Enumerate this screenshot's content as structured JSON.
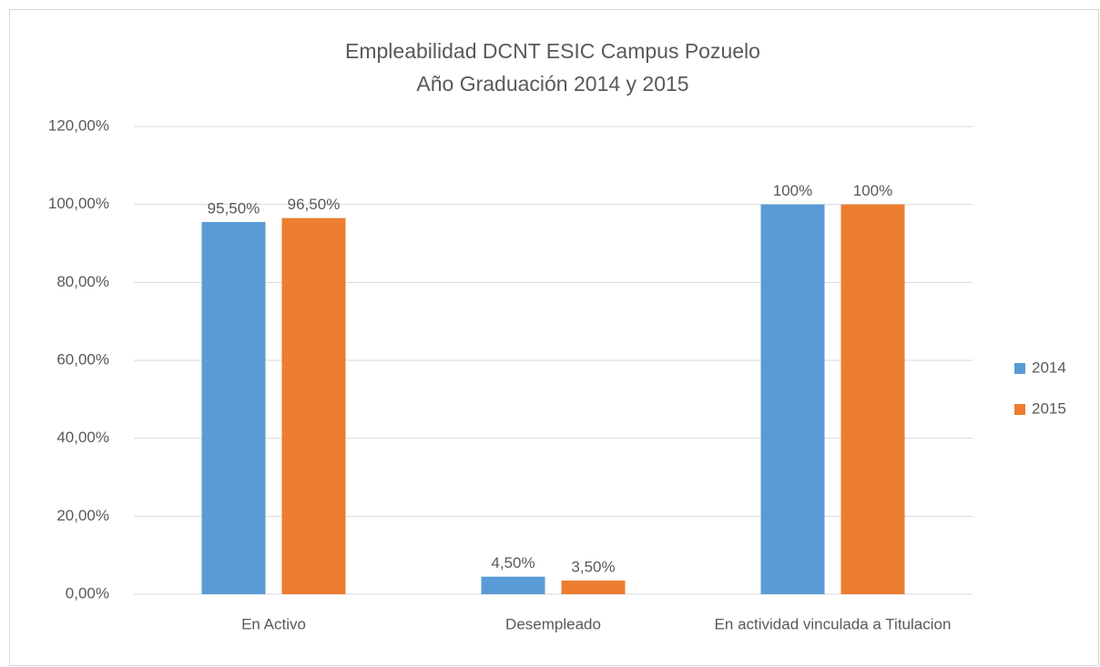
{
  "chart_data": {
    "type": "bar",
    "title": "Empleabilidad DCNT ESIC Campus Pozuelo",
    "subtitle": "Año Graduación 2014 y 2015",
    "categories": [
      "En Activo",
      "Desempleado",
      "En actividad vinculada a Titulacion"
    ],
    "series": [
      {
        "name": "2014",
        "color": "#5b9bd5",
        "values": [
          95.5,
          4.5,
          100
        ],
        "value_labels": [
          "95,50%",
          "4,50%",
          "100%"
        ]
      },
      {
        "name": "2015",
        "color": "#ed7d31",
        "values": [
          96.5,
          3.5,
          100
        ],
        "value_labels": [
          "96,50%",
          "3,50%",
          "100%"
        ]
      }
    ],
    "ylim": [
      0,
      120
    ],
    "yticks": [
      {
        "value": 0,
        "label": "0,00%"
      },
      {
        "value": 20,
        "label": "20,00%"
      },
      {
        "value": 40,
        "label": "40,00%"
      },
      {
        "value": 60,
        "label": "60,00%"
      },
      {
        "value": 80,
        "label": "80,00%"
      },
      {
        "value": 100,
        "label": "100,00%"
      },
      {
        "value": 120,
        "label": "120,00%"
      }
    ],
    "grid": true,
    "legend": "right"
  }
}
